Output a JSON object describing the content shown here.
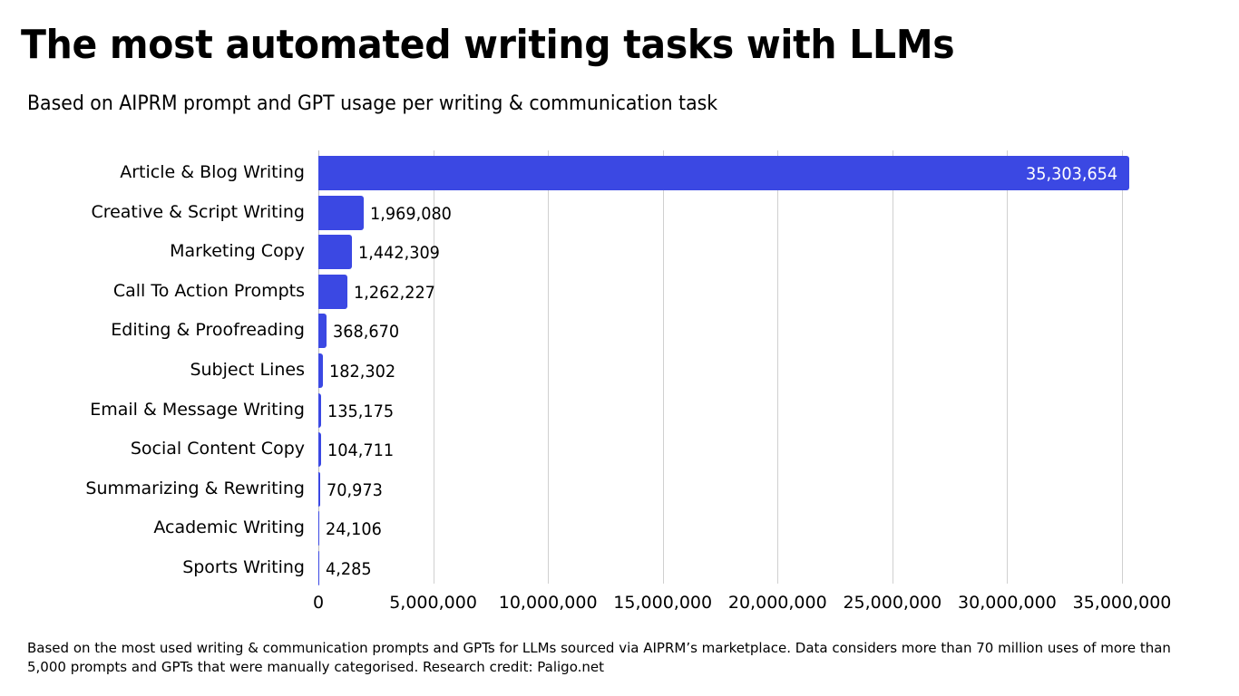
{
  "title": "The most automated writing tasks with LLMs",
  "subtitle": "Based on AIPRM prompt and GPT usage per writing & communication task",
  "footer": "Based on the most used writing & communication prompts and GPTs for LLMs sourced via AIPRM’s marketplace. Data considers more than 70 million uses of more than 5,000 prompts and GPTs that were manually categorised. Research credit: Paligo.net",
  "colors": {
    "bar": "#3b48e3",
    "grid": "#d0d0d0"
  },
  "chart_data": {
    "type": "bar",
    "orientation": "horizontal",
    "title": "The most automated writing tasks with LLMs",
    "subtitle": "Based on AIPRM prompt and GPT usage per writing & communication task",
    "xlabel": "",
    "ylabel": "",
    "xlim": [
      0,
      35000000
    ],
    "grid": true,
    "legend": null,
    "categories": [
      "Article & Blog Writing",
      "Creative & Script Writing",
      "Marketing Copy",
      "Call To Action Prompts",
      "Editing & Proofreading",
      "Subject Lines",
      "Email & Message Writing",
      "Social Content Copy",
      "Summarizing & Rewriting",
      "Academic Writing",
      "Sports Writing"
    ],
    "values": [
      35303654,
      1969080,
      1442309,
      1262227,
      368670,
      182302,
      135175,
      104711,
      70973,
      24106,
      4285
    ],
    "value_labels": [
      "35,303,654",
      "1,969,080",
      "1,442,309",
      "1,262,227",
      "368,670",
      "182,302",
      "135,175",
      "104,711",
      "70,973",
      "24,106",
      "4,285"
    ],
    "x_ticks": [
      0,
      5000000,
      10000000,
      15000000,
      20000000,
      25000000,
      30000000,
      35000000
    ],
    "x_tick_labels": [
      "0",
      "5,000,000",
      "10,000,000",
      "15,000,000",
      "20,000,000",
      "25,000,000",
      "30,000,000",
      "35,000,000"
    ]
  }
}
